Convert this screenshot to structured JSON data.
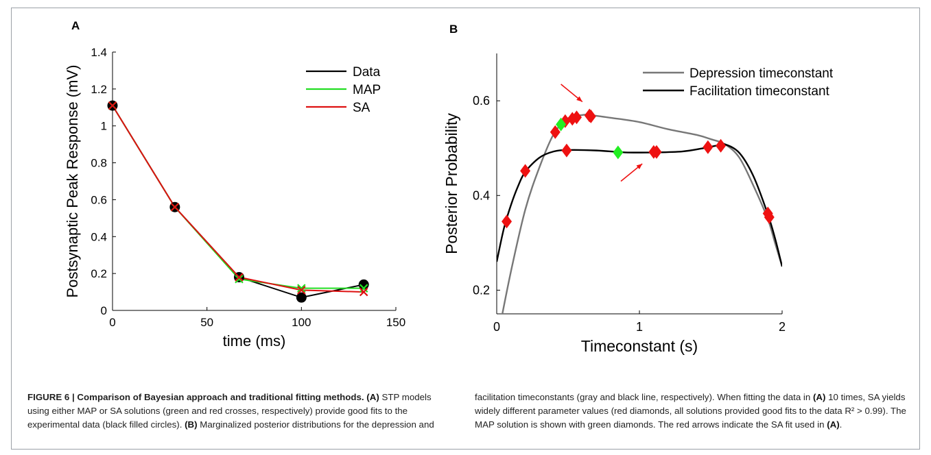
{
  "chart_data": [
    {
      "panel_label": "A",
      "type": "line",
      "xlabel": "time (ms)",
      "ylabel": "Postsynaptic Peak Response (mV)",
      "xlim": [
        0,
        150
      ],
      "ylim": [
        0,
        1.4
      ],
      "xticks": [
        0,
        50,
        100,
        150
      ],
      "yticks": [
        0,
        0.2,
        0.4,
        0.6,
        0.8,
        1.0,
        1.2,
        1.4
      ],
      "ytick_labels": [
        "0",
        "0.2",
        "0.4",
        "0.6",
        "0.8",
        "1",
        "1.2",
        "1.4"
      ],
      "legend_position": "top-right",
      "series": [
        {
          "name": "Data",
          "color": "#000000",
          "marker": "filled-circle",
          "x": [
            0,
            33,
            67,
            100,
            133
          ],
          "y": [
            1.11,
            0.56,
            0.18,
            0.07,
            0.14
          ]
        },
        {
          "name": "MAP",
          "color": "#22dd22",
          "marker": "cross",
          "x": [
            0,
            33,
            67,
            100,
            133
          ],
          "y": [
            1.11,
            0.56,
            0.17,
            0.12,
            0.12
          ]
        },
        {
          "name": "SA",
          "color": "#dd1111",
          "marker": "cross",
          "x": [
            0,
            33,
            67,
            100,
            133
          ],
          "y": [
            1.11,
            0.56,
            0.18,
            0.11,
            0.1
          ]
        }
      ]
    },
    {
      "panel_label": "B",
      "type": "line",
      "xlabel": "Timeconstant (s)",
      "ylabel": "Posterior Probability",
      "xlim": [
        0,
        2
      ],
      "ylim": [
        0.15,
        0.7
      ],
      "xticks": [
        0,
        1,
        2
      ],
      "yticks": [
        0.2,
        0.4,
        0.6
      ],
      "legend_position": "top-right",
      "series": [
        {
          "name": "Depression timeconstant",
          "color": "#777777",
          "x": [
            0.02,
            0.1,
            0.2,
            0.3,
            0.4,
            0.5,
            0.6,
            0.65,
            0.8,
            1.0,
            1.2,
            1.4,
            1.5,
            1.6,
            1.7,
            1.8,
            1.9,
            1.95,
            2.0
          ],
          "y": [
            0.12,
            0.24,
            0.37,
            0.46,
            0.53,
            0.563,
            0.57,
            0.57,
            0.564,
            0.555,
            0.54,
            0.528,
            0.519,
            0.508,
            0.48,
            0.42,
            0.35,
            0.3,
            0.25
          ]
        },
        {
          "name": "Facilitation timeconstant",
          "color": "#000000",
          "x": [
            0.0,
            0.05,
            0.1,
            0.15,
            0.2,
            0.3,
            0.4,
            0.5,
            0.7,
            0.9,
            1.1,
            1.3,
            1.45,
            1.55,
            1.6,
            1.7,
            1.8,
            1.9,
            1.95,
            2.0
          ],
          "y": [
            0.26,
            0.33,
            0.38,
            0.42,
            0.45,
            0.48,
            0.493,
            0.496,
            0.495,
            0.491,
            0.491,
            0.493,
            0.5,
            0.506,
            0.508,
            0.49,
            0.44,
            0.36,
            0.31,
            0.25
          ]
        }
      ],
      "markers": {
        "sa_solutions": {
          "color": "#ee1111",
          "shape": "diamond",
          "x": [
            0.07,
            0.2,
            0.41,
            0.48,
            0.53,
            0.56,
            0.65,
            0.66,
            0.49,
            1.1,
            1.12,
            1.48,
            1.57,
            1.9,
            1.91
          ],
          "y": [
            0.345,
            0.452,
            0.534,
            0.557,
            0.562,
            0.565,
            0.569,
            0.567,
            0.495,
            0.492,
            0.492,
            0.502,
            0.505,
            0.362,
            0.354
          ]
        },
        "map_solutions": {
          "color": "#22ee22",
          "shape": "diamond",
          "x": [
            0.45,
            0.85
          ],
          "y": [
            0.55,
            0.491
          ]
        }
      },
      "arrows": [
        {
          "color": "#ee1111",
          "x0": 0.45,
          "y0": 0.635,
          "x1": 0.6,
          "y1": 0.598
        },
        {
          "color": "#ee1111",
          "x0": 0.87,
          "y0": 0.43,
          "x1": 1.02,
          "y1": 0.467
        }
      ]
    }
  ],
  "caption": {
    "title": "FIGURE 6 | Comparison of Bayesian approach and traditional fitting methods.",
    "left_parts": [
      {
        "b": false,
        "t": " "
      },
      {
        "b": true,
        "t": "(A)"
      },
      {
        "b": false,
        "t": " STP models using either MAP or SA solutions (green and red crosses, respectively) provide good fits to the experimental data (black filled circles). "
      },
      {
        "b": true,
        "t": "(B)"
      },
      {
        "b": false,
        "t": " Marginalized posterior distributions for the depression and"
      }
    ],
    "right_parts": [
      {
        "b": false,
        "t": "facilitation timeconstants (gray and black line, respectively). When fitting the data in "
      },
      {
        "b": true,
        "t": "(A)"
      },
      {
        "b": false,
        "t": " 10 times, SA yields widely different parameter values (red diamonds, all solutions provided good fits to the data R² > 0.99). The MAP solution is shown with green diamonds. The red arrows indicate the SA fit used in "
      },
      {
        "b": true,
        "t": "(A)"
      },
      {
        "b": false,
        "t": "."
      }
    ]
  }
}
